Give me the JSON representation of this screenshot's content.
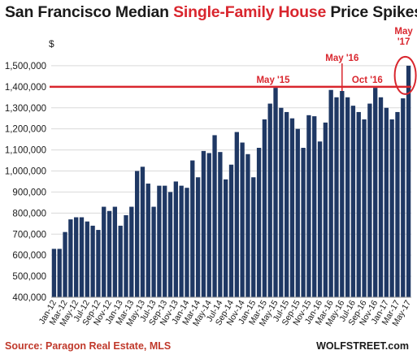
{
  "title": {
    "part1": "San Francisco Median ",
    "part2": "Single-Family House",
    "part3": " Price Spikes"
  },
  "source": "Source: Paragon Real Estate, MLS",
  "brand": "WOLFSTREET.com",
  "colors": {
    "bar": "#1f3864",
    "highlight": "#d9262e",
    "grid": "#d9d9d9",
    "text": "#1a1a1a"
  },
  "chart_data": {
    "type": "bar",
    "title": "San Francisco Median Single-Family House Price Spikes",
    "ylabel": "$",
    "ylim": [
      400000,
      1600000
    ],
    "yticks": [
      400000,
      500000,
      600000,
      700000,
      800000,
      900000,
      1000000,
      1100000,
      1200000,
      1300000,
      1400000,
      1500000
    ],
    "ytick_labels": [
      "400,000",
      "500,000",
      "600,000",
      "700,000",
      "800,000",
      "900,000",
      "1,000,000",
      "1,100,000",
      "1,200,000",
      "1,300,000",
      "1,400,000",
      "1,500,000"
    ],
    "grid": "horizontal",
    "categories": [
      "Jan-12",
      "Feb-12",
      "Mar-12",
      "Apr-12",
      "May-12",
      "Jun-12",
      "Jul-12",
      "Aug-12",
      "Sep-12",
      "Oct-12",
      "Nov-12",
      "Dec-12",
      "Jan-13",
      "Feb-13",
      "Mar-13",
      "Apr-13",
      "May-13",
      "Jun-13",
      "Jul-13",
      "Aug-13",
      "Sep-13",
      "Oct-13",
      "Nov-13",
      "Dec-13",
      "Jan-14",
      "Feb-14",
      "Mar-14",
      "Apr-14",
      "May-14",
      "Jun-14",
      "Jul-14",
      "Aug-14",
      "Sep-14",
      "Oct-14",
      "Nov-14",
      "Dec-14",
      "Jan-15",
      "Feb-15",
      "Mar-15",
      "Apr-15",
      "May-15",
      "Jun-15",
      "Jul-15",
      "Aug-15",
      "Sep-15",
      "Oct-15",
      "Nov-15",
      "Dec-15",
      "Jan-16",
      "Feb-16",
      "Mar-16",
      "Apr-16",
      "May-16",
      "Jun-16",
      "Jul-16",
      "Aug-16",
      "Sep-16",
      "Oct-16",
      "Nov-16",
      "Dec-16",
      "Jan-17",
      "Feb-17",
      "Mar-17",
      "Apr-17",
      "May-17"
    ],
    "values": [
      630000,
      630000,
      710000,
      770000,
      780000,
      780000,
      760000,
      740000,
      720000,
      830000,
      810000,
      830000,
      740000,
      790000,
      830000,
      1000000,
      1020000,
      940000,
      830000,
      930000,
      930000,
      900000,
      950000,
      930000,
      920000,
      1050000,
      970000,
      1095000,
      1085000,
      1170000,
      1090000,
      960000,
      1030000,
      1185000,
      1135000,
      1080000,
      970000,
      1110000,
      1245000,
      1320000,
      1395000,
      1300000,
      1280000,
      1250000,
      1200000,
      1110000,
      1265000,
      1260000,
      1140000,
      1230000,
      1385000,
      1350000,
      1380000,
      1350000,
      1310000,
      1280000,
      1245000,
      1320000,
      1395000,
      1350000,
      1300000,
      1245000,
      1280000,
      1345000,
      1500000
    ],
    "xtick_labels": [
      "Jan-12",
      "Mar-12",
      "May-12",
      "Jul-12",
      "Sep-12",
      "Nov-12",
      "Jan-13",
      "Mar-13",
      "May-13",
      "Jul-13",
      "Sep-13",
      "Nov-13",
      "Jan-14",
      "Mar-14",
      "May-14",
      "Jul-14",
      "Sep-14",
      "Nov-14",
      "Jan-15",
      "Mar-15",
      "May-15",
      "Jul-15",
      "Sep-15",
      "Nov-15",
      "Jan-16",
      "Mar-16",
      "May-16",
      "Jul-16",
      "Sep-16",
      "Nov-16",
      "Jan-17",
      "Mar-17",
      "May-17"
    ],
    "reference_line": 1400000,
    "annotations": [
      {
        "text": "May '15",
        "category": "May-15"
      },
      {
        "text": "May '16",
        "category": "May-16"
      },
      {
        "text": "Oct '16",
        "category": "Oct-16"
      },
      {
        "text": "May\n'17",
        "category": "May-17"
      }
    ]
  }
}
